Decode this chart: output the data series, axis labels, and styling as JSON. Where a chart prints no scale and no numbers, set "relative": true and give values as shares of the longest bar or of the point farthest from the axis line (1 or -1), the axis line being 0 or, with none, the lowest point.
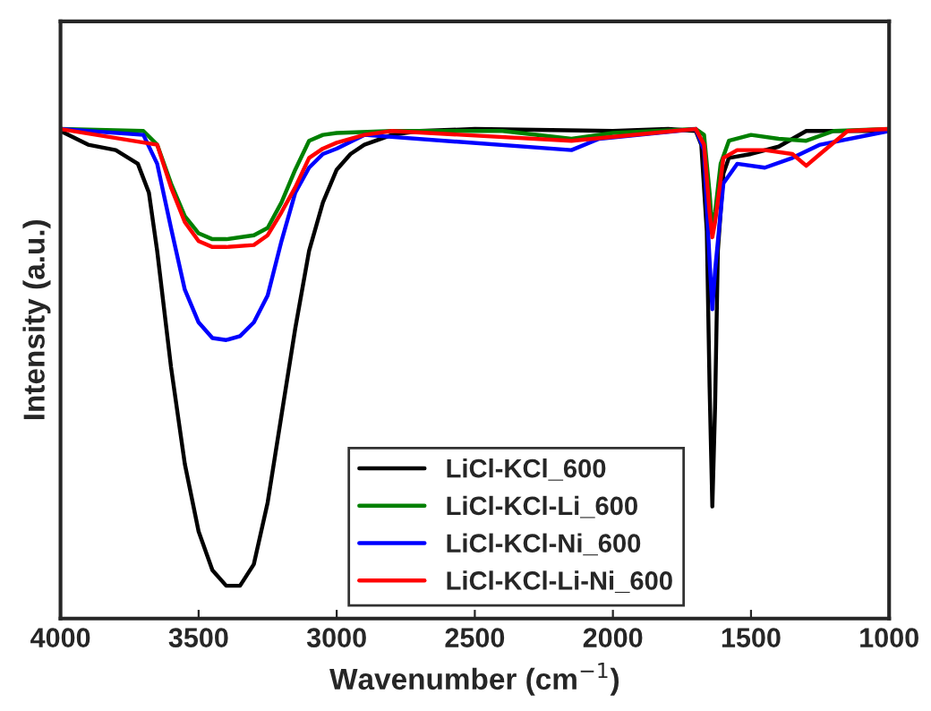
{
  "chart_data": {
    "type": "line",
    "relative": true,
    "xlabel": "Wavenumber (cm$^{−1}$)",
    "ylabel": "Intensity (a.u.)",
    "xlim": [
      4000,
      1000
    ],
    "xticks": [
      4000,
      3500,
      3000,
      2500,
      2000,
      1500,
      1000
    ],
    "grid": false,
    "legend": "bottom",
    "tick_labels": "x",
    "series": [
      {
        "name": "LiCl-KCl_600",
        "color": "#000000",
        "x": [
          4000,
          3900,
          3800,
          3720,
          3680,
          3650,
          3600,
          3550,
          3500,
          3450,
          3400,
          3350,
          3300,
          3250,
          3200,
          3150,
          3100,
          3050,
          3000,
          2950,
          2900,
          2800,
          2700,
          2500,
          2000,
          1800,
          1700,
          1680,
          1660,
          1650,
          1640,
          1630,
          1620,
          1600,
          1580,
          1500,
          1400,
          1300,
          1000
        ],
        "values": [
          0.996,
          0.968,
          0.957,
          0.929,
          0.87,
          0.751,
          0.514,
          0.316,
          0.178,
          0.099,
          0.067,
          0.067,
          0.111,
          0.237,
          0.415,
          0.593,
          0.751,
          0.85,
          0.917,
          0.949,
          0.968,
          0.988,
          0.996,
          1.0,
          0.996,
          1.0,
          0.996,
          0.968,
          0.791,
          0.474,
          0.229,
          0.435,
          0.751,
          0.909,
          0.941,
          0.949,
          0.964,
          0.996,
          0.996
        ]
      },
      {
        "name": "LiCl-KCl-Li_600",
        "color": "#008000",
        "x": [
          4000,
          3700,
          3650,
          3600,
          3550,
          3500,
          3450,
          3400,
          3300,
          3250,
          3200,
          3150,
          3100,
          3050,
          3000,
          2800,
          2400,
          2150,
          2000,
          1700,
          1670,
          1650,
          1640,
          1630,
          1610,
          1580,
          1500,
          1400,
          1300,
          1200,
          1000
        ],
        "values": [
          1.0,
          0.996,
          0.968,
          0.889,
          0.822,
          0.787,
          0.775,
          0.775,
          0.783,
          0.798,
          0.85,
          0.917,
          0.976,
          0.988,
          0.992,
          0.996,
          0.996,
          0.98,
          0.992,
          1.0,
          0.988,
          0.87,
          0.791,
          0.83,
          0.929,
          0.976,
          0.988,
          0.98,
          0.976,
          0.996,
          1.0
        ]
      },
      {
        "name": "LiCl-KCl-Ni_600",
        "color": "#0000ff",
        "x": [
          4000,
          3700,
          3650,
          3600,
          3550,
          3500,
          3450,
          3400,
          3350,
          3300,
          3250,
          3200,
          3150,
          3100,
          3050,
          3000,
          2900,
          2150,
          2050,
          1700,
          1670,
          1650,
          1640,
          1630,
          1600,
          1550,
          1450,
          1350,
          1250,
          1000
        ],
        "values": [
          1.0,
          0.988,
          0.929,
          0.798,
          0.672,
          0.605,
          0.573,
          0.569,
          0.577,
          0.605,
          0.66,
          0.771,
          0.87,
          0.921,
          0.949,
          0.96,
          0.988,
          0.957,
          0.98,
          1.0,
          0.957,
          0.731,
          0.632,
          0.711,
          0.889,
          0.929,
          0.921,
          0.941,
          0.968,
          0.996
        ]
      },
      {
        "name": "LiCl-KCl-Li-Ni_600",
        "color": "#ff0000",
        "x": [
          4000,
          3650,
          3600,
          3550,
          3500,
          3450,
          3400,
          3300,
          3250,
          3200,
          3150,
          3100,
          3050,
          3000,
          2900,
          2800,
          2150,
          1700,
          1670,
          1650,
          1640,
          1630,
          1600,
          1550,
          1450,
          1350,
          1300,
          1250,
          1150,
          1000
        ],
        "values": [
          1.0,
          0.968,
          0.881,
          0.81,
          0.771,
          0.759,
          0.759,
          0.763,
          0.783,
          0.83,
          0.881,
          0.941,
          0.96,
          0.972,
          0.988,
          0.996,
          0.976,
          1.0,
          0.968,
          0.83,
          0.779,
          0.81,
          0.941,
          0.957,
          0.957,
          0.949,
          0.925,
          0.949,
          0.996,
          1.0
        ]
      }
    ]
  }
}
